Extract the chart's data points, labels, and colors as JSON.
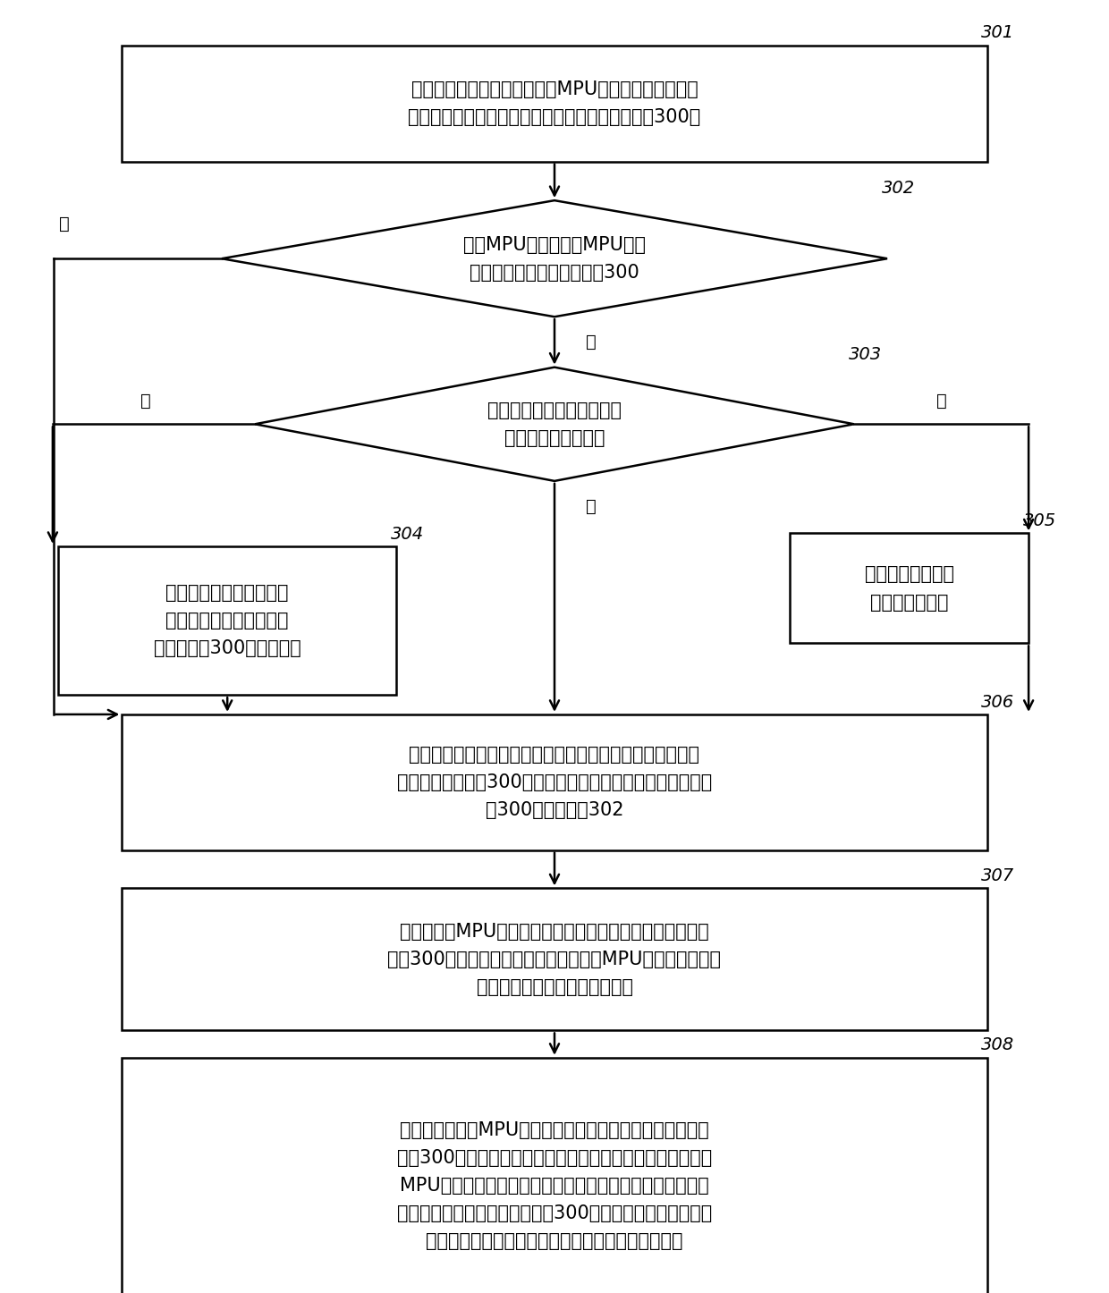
{
  "bg_color": "#ffffff",
  "line_color": "#000000",
  "text_color": "#000000",
  "box301_text": "在指定单板启动过程中，主用MPU向指定单板发送本地\n存储的系统资源状态信息（记为系统资源状态信息300）",
  "box302_text": "主用MPU检测本主用MPU是否\n成功发送系统资源状态信息300",
  "box303_text": "检查本地是否存在指定单板\n相关联的重传定时器",
  "box304_text": "创建指定单板相关联的重\n传定时器，并记录系统资\n源状态信息300的资源标识",
  "box305_text": "重置指定单板相关\n联的重传定时器",
  "box306_text": "在检测到重传定时器超时时根据记录的上述资源标识查找到\n系统资源状态信息300，重新向指定单板发送系统资源状态信\n息300，返回步骤302",
  "box307_text": "检查本主用MPU是否已记录了该被成功发送的系统资源状态\n信息300的资源标识，以及，检查本主用MPU是否已创建了所\n述指定单板相关联的重传定时器",
  "box308_text": "若检查出本主用MPU已记录了该被成功发送的系统资源状态\n信息300的资源标识，则删除所述资源标识；若检查出本主用\nMPU本地已创建了指定单板相关联的重传定时器，则判断该\n被成功发送的系统资源状态信息300是否为最后一份需要发送\n的系统资源状态信息，如果是，删除所述重传定时器",
  "label_yes": "是",
  "label_no": "否",
  "font_size": 15,
  "label_font_size": 14,
  "num_font_size": 14,
  "lw": 1.8
}
